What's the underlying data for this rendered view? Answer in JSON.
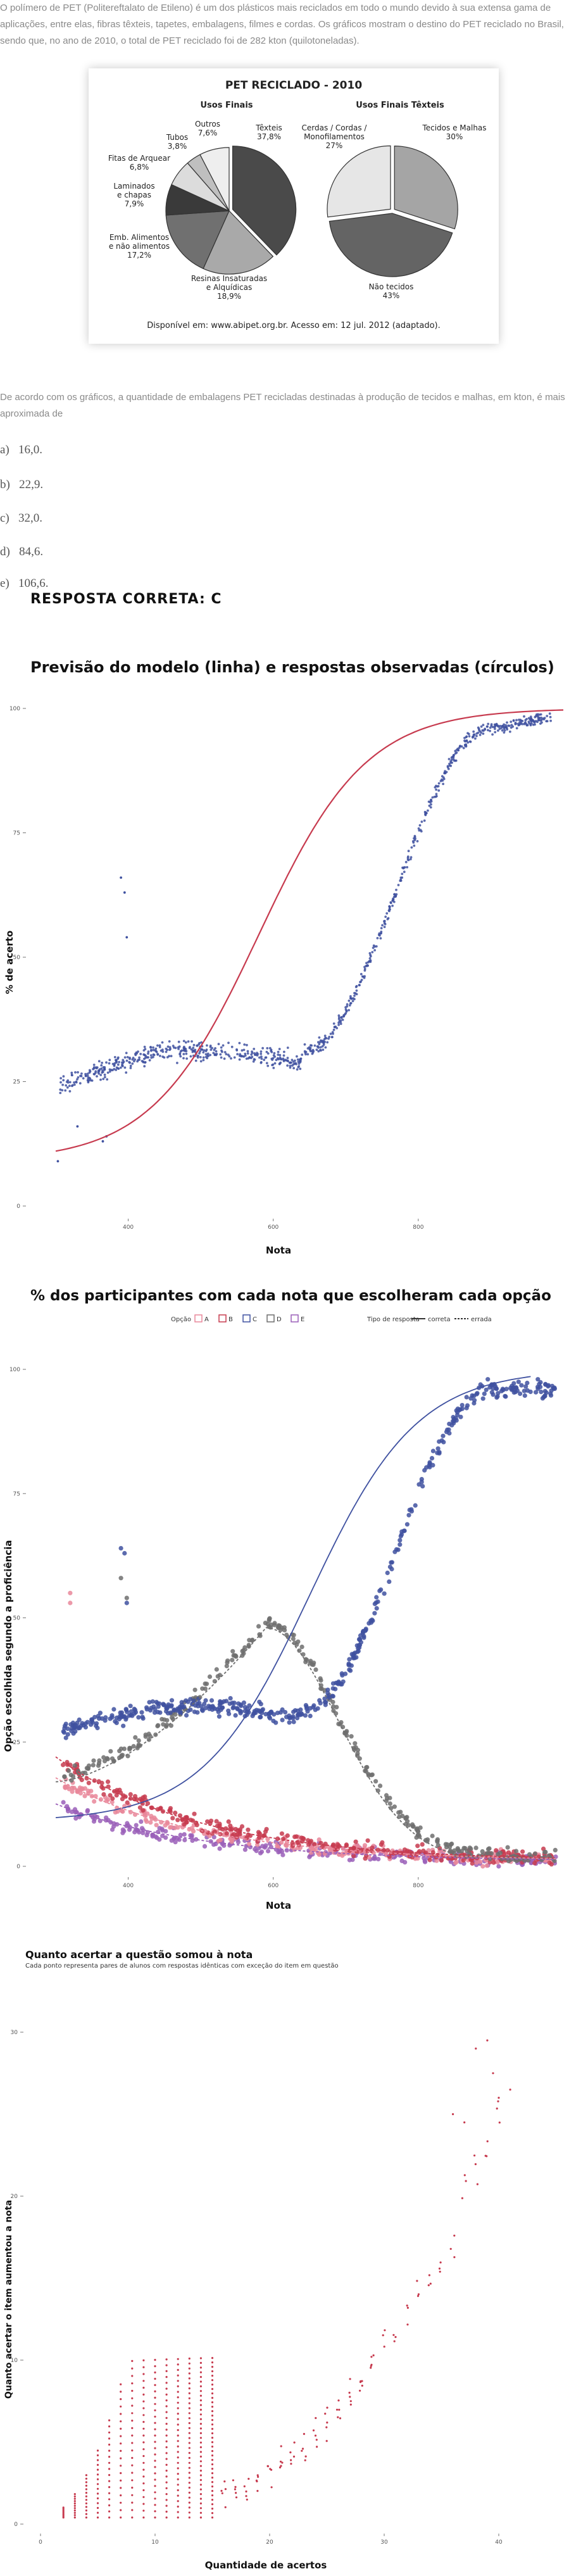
{
  "intro": "O polímero de PET (Politereftalato de Etileno) é um dos plásticos mais reciclados em todo o mundo devido à sua extensa gama de aplicações, entre elas, fibras têxteis, tapetes, embalagens, filmes e cordas. Os gráficos mostram o destino do PET reciclado no Brasil, sendo que, no ano de 2010, o total de PET reciclado foi de 282 kton (quilotoneladas).",
  "question": "De acordo com os gráficos, a quantidade de embalagens PET recicladas destinadas à produção de tecidos e malhas, em kton, é mais aproximada de",
  "options": [
    {
      "letter": "a)",
      "text": "16,0."
    },
    {
      "letter": "b)",
      "text": "22,9."
    },
    {
      "letter": "c)",
      "text": "32,0."
    },
    {
      "letter": "d)",
      "text": "84,6."
    },
    {
      "letter": "e)",
      "text": "106,6."
    }
  ],
  "answer": "RESPOSTA CORRETA: C",
  "colors": {
    "blue": "#3f51a0",
    "red": "#c73b4f",
    "gray": "#6e6e6e",
    "pink": "#e9879a",
    "purple": "#9a5fb8"
  },
  "chart_data": [
    {
      "type": "pie",
      "title": "PET RECICLADO - 2010",
      "source": "Disponível em: www.abipet.org.br. Acesso em: 12 jul. 2012 (adaptado).",
      "pies": [
        {
          "title": "Usos Finais",
          "slices": [
            {
              "name": "Têxteis",
              "value": 37.8,
              "label": "37,8%",
              "color": "#4a4a4a"
            },
            {
              "name": "Resinas Insaturadas e Alquídicas",
              "value": 18.9,
              "label": "18,9%",
              "color": "#a9a9a9"
            },
            {
              "name": "Emb. Alimentos e não alimentos",
              "value": 17.2,
              "label": "17,2%",
              "color": "#707070"
            },
            {
              "name": "Laminados e chapas",
              "value": 7.9,
              "label": "7,9%",
              "color": "#3a3a3a"
            },
            {
              "name": "Fitas de Arquear",
              "value": 6.8,
              "label": "6,8%",
              "color": "#dcdcdc"
            },
            {
              "name": "Tubos",
              "value": 3.8,
              "label": "3,8%",
              "color": "#bfbfbf"
            },
            {
              "name": "Outros",
              "value": 7.6,
              "label": "7,6%",
              "color": "#eeeeee"
            }
          ]
        },
        {
          "title": "Usos Finais Têxteis",
          "slices": [
            {
              "name": "Tecidos e Malhas",
              "value": 30,
              "label": "30%",
              "color": "#a5a5a5"
            },
            {
              "name": "Não tecidos",
              "value": 43,
              "label": "43%",
              "color": "#646464"
            },
            {
              "name": "Cerdas / Cordas / Monofilamentos",
              "value": 27,
              "label": "27%",
              "color": "#e6e6e6"
            }
          ]
        }
      ]
    },
    {
      "type": "scatter",
      "title": "Previsão do modelo (linha) e respostas observadas (círculos)",
      "xlabel": "Nota",
      "ylabel": "% de acerto",
      "xlim": [
        300,
        1000
      ],
      "ylim": [
        0,
        100
      ],
      "xticks": [
        400,
        600,
        800
      ],
      "yticks": [
        0,
        25,
        50,
        75,
        100
      ],
      "xtick_labels": [
        "400",
        "600",
        "800"
      ],
      "ytick_labels": [
        "0",
        "25",
        "50",
        "75",
        "100"
      ],
      "grid": false,
      "model_curve": {
        "b": 580,
        "a": 0.0135,
        "c": 0.09,
        "d": 1.0
      },
      "observed": {
        "plateau": 31,
        "rise_start": 640,
        "rise_end": 900,
        "top": 98
      }
    },
    {
      "type": "scatter",
      "title": "% dos participantes com cada nota que escolheram cada opção",
      "xlabel": "Nota",
      "ylabel": "Opção escolhida segundo a proficiência",
      "xlim": [
        300,
        1000
      ],
      "ylim": [
        0,
        100
      ],
      "xticks": [
        400,
        600,
        800
      ],
      "yticks": [
        0,
        25,
        50,
        75,
        100
      ],
      "xtick_labels": [
        "400",
        "600",
        "800"
      ],
      "ytick_labels": [
        "0",
        "25",
        "50",
        "75",
        "100"
      ],
      "legend": {
        "placement": "top",
        "option_title": "Opção",
        "options": [
          "A",
          "B",
          "C",
          "D",
          "E"
        ],
        "type_title": "Tipo de resposta",
        "types": [
          "correta",
          "errada"
        ]
      },
      "series": [
        {
          "name": "A",
          "color": "#e9879a",
          "start": 17,
          "end": 1
        },
        {
          "name": "B",
          "color": "#c73b4f",
          "start": 21,
          "end": 1
        },
        {
          "name": "C",
          "color": "#3f51a0",
          "start": 27,
          "end": 96
        },
        {
          "name": "D",
          "color": "#6e6e6e",
          "start": 18,
          "peak": 49,
          "end": 2
        },
        {
          "name": "E",
          "color": "#9a5fb8",
          "start": 12,
          "end": 1
        }
      ]
    },
    {
      "type": "scatter",
      "title": "Quanto acertar a questão somou à nota",
      "subtitle": "Cada ponto representa pares de alunos com respostas idênticas com exceção do item em questão",
      "xlabel": "Quantidade de acertos",
      "ylabel": "Quanto acertar o item aumentou a nota",
      "xlim": [
        0,
        45
      ],
      "ylim": [
        0,
        30
      ],
      "xticks": [
        0,
        10,
        20,
        30,
        40
      ],
      "yticks": [
        0,
        10,
        20,
        30
      ],
      "xtick_labels": [
        "0",
        "10",
        "20",
        "30",
        "40"
      ],
      "ytick_labels": [
        "0",
        "10",
        "20",
        "30"
      ],
      "color": "#c73b4f"
    }
  ]
}
